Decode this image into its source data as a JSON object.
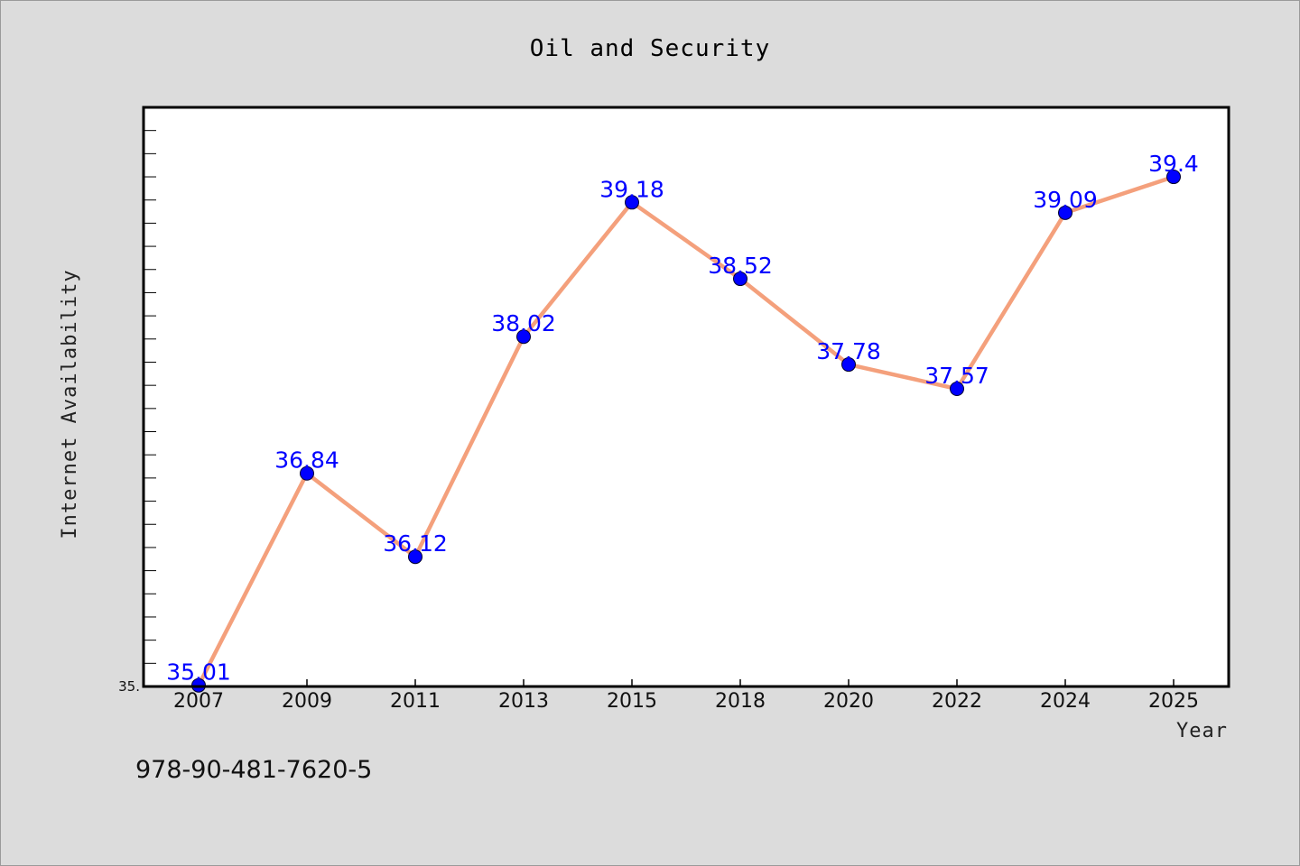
{
  "chart_data": {
    "type": "line",
    "title": "Oil and Security",
    "xlabel": "Year",
    "ylabel": "Internet Availability",
    "categories": [
      "2007",
      "2009",
      "2011",
      "2013",
      "2015",
      "2018",
      "2020",
      "2022",
      "2024",
      "2025"
    ],
    "series": [
      {
        "values": [
          35.01,
          36.84,
          36.12,
          38.02,
          39.18,
          38.52,
          37.78,
          37.57,
          39.09,
          39.4
        ],
        "labels": [
          "35.01",
          "36.84",
          "36.12",
          "38.02",
          "39.18",
          "38.52",
          "37.78",
          "37.57",
          "39.09",
          "39.4"
        ],
        "line_color": "#f4a07c",
        "marker_color": "#0000ff"
      }
    ],
    "ylim": [
      35.0,
      40.0
    ],
    "yticks": [
      {
        "value": 35.0,
        "label": "35."
      }
    ],
    "grid": false,
    "legend": "none"
  },
  "footer": {
    "isbn": "978-90-481-7620-5"
  },
  "colors": {
    "background": "#dcdcdc",
    "plot_background": "#ffffff",
    "line": "#f4a07c",
    "marker": "#0000ff",
    "data_label": "#0000ff"
  }
}
